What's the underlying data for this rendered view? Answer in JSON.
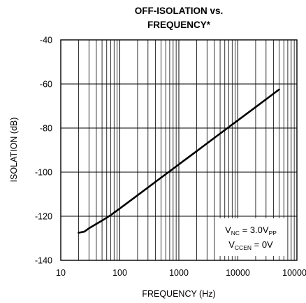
{
  "chart_data": {
    "type": "line",
    "title_lines": [
      "OFF-ISOLATION vs.",
      "FREQUENCY*"
    ],
    "xlabel": "FREQUENCY (Hz)",
    "ylabel": "ISOLATION (dB)",
    "x_scale": "log",
    "xlim": [
      10,
      100000
    ],
    "ylim": [
      -140,
      -40
    ],
    "x_tick_values": [
      10,
      100,
      1000,
      10000,
      100000
    ],
    "x_tick_labels": [
      "10",
      "100",
      "1000",
      "10000",
      "100000"
    ],
    "y_tick_values": [
      -40,
      -60,
      -80,
      -100,
      -120,
      -140
    ],
    "y_tick_labels": [
      "-40",
      "-60",
      "-80",
      "-100",
      "-120",
      "-140"
    ],
    "grid": true,
    "series": [
      {
        "x": [
          20,
          25,
          30,
          40,
          50,
          70,
          100,
          200,
          500,
          1000,
          2000,
          5000,
          10000,
          20000,
          50000
        ],
        "y": [
          -127.5,
          -127,
          -125.5,
          -123.5,
          -122,
          -119.5,
          -116.5,
          -110.5,
          -102.5,
          -96.5,
          -90.5,
          -82.5,
          -76.5,
          -70.5,
          -62.5
        ]
      }
    ],
    "annotation": {
      "line1": {
        "main": "V",
        "sub": "NC",
        "rest": " = 3.0V",
        "sub2": "PP"
      },
      "line2": {
        "main": "V",
        "sub": "CCEN",
        "rest": " = 0V"
      }
    }
  },
  "colors": {
    "line": "#000000",
    "grid": "#000000",
    "background": "#ffffff"
  }
}
